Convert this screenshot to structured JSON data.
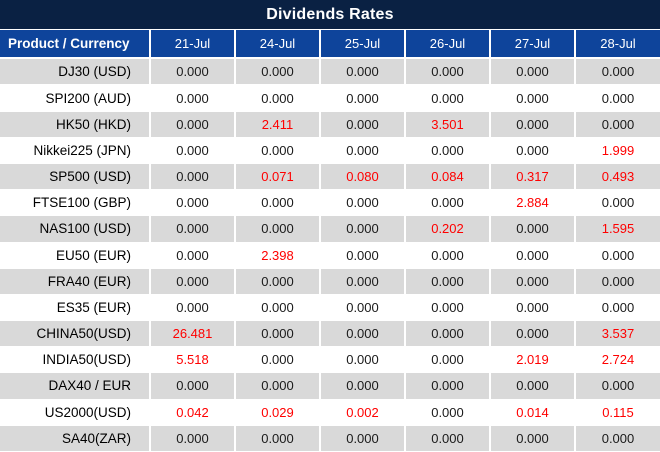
{
  "title": "Dividends Rates",
  "table": {
    "product_header": "Product / Currency",
    "date_columns": [
      "21-Jul",
      "24-Jul",
      "25-Jul",
      "26-Jul",
      "27-Jul",
      "28-Jul"
    ],
    "rows": [
      {
        "label": "DJ30 (USD)",
        "values": [
          "0.000",
          "0.000",
          "0.000",
          "0.000",
          "0.000",
          "0.000"
        ],
        "red": [
          false,
          false,
          false,
          false,
          false,
          false
        ]
      },
      {
        "label": "SPI200 (AUD)",
        "values": [
          "0.000",
          "0.000",
          "0.000",
          "0.000",
          "0.000",
          "0.000"
        ],
        "red": [
          false,
          false,
          false,
          false,
          false,
          false
        ]
      },
      {
        "label": "HK50 (HKD)",
        "values": [
          "0.000",
          "2.411",
          "0.000",
          "3.501",
          "0.000",
          "0.000"
        ],
        "red": [
          false,
          true,
          false,
          true,
          false,
          false
        ]
      },
      {
        "label": "Nikkei225 (JPN)",
        "values": [
          "0.000",
          "0.000",
          "0.000",
          "0.000",
          "0.000",
          "1.999"
        ],
        "red": [
          false,
          false,
          false,
          false,
          false,
          true
        ]
      },
      {
        "label": "SP500 (USD)",
        "values": [
          "0.000",
          "0.071",
          "0.080",
          "0.084",
          "0.317",
          "0.493"
        ],
        "red": [
          false,
          true,
          true,
          true,
          true,
          true
        ]
      },
      {
        "label": "FTSE100 (GBP)",
        "values": [
          "0.000",
          "0.000",
          "0.000",
          "0.000",
          "2.884",
          "0.000"
        ],
        "red": [
          false,
          false,
          false,
          false,
          true,
          false
        ]
      },
      {
        "label": "NAS100 (USD)",
        "values": [
          "0.000",
          "0.000",
          "0.000",
          "0.202",
          "0.000",
          "1.595"
        ],
        "red": [
          false,
          false,
          false,
          true,
          false,
          true
        ]
      },
      {
        "label": "EU50 (EUR)",
        "values": [
          "0.000",
          "2.398",
          "0.000",
          "0.000",
          "0.000",
          "0.000"
        ],
        "red": [
          false,
          true,
          false,
          false,
          false,
          false
        ]
      },
      {
        "label": "FRA40 (EUR)",
        "values": [
          "0.000",
          "0.000",
          "0.000",
          "0.000",
          "0.000",
          "0.000"
        ],
        "red": [
          false,
          false,
          false,
          false,
          false,
          false
        ]
      },
      {
        "label": "ES35 (EUR)",
        "values": [
          "0.000",
          "0.000",
          "0.000",
          "0.000",
          "0.000",
          "0.000"
        ],
        "red": [
          false,
          false,
          false,
          false,
          false,
          false
        ]
      },
      {
        "label": "CHINA50(USD)",
        "values": [
          "26.481",
          "0.000",
          "0.000",
          "0.000",
          "0.000",
          "3.537"
        ],
        "red": [
          true,
          false,
          false,
          false,
          false,
          true
        ]
      },
      {
        "label": "INDIA50(USD)",
        "values": [
          "5.518",
          "0.000",
          "0.000",
          "0.000",
          "2.019",
          "2.724"
        ],
        "red": [
          true,
          false,
          false,
          false,
          true,
          true
        ]
      },
      {
        "label": "DAX40 / EUR",
        "values": [
          "0.000",
          "0.000",
          "0.000",
          "0.000",
          "0.000",
          "0.000"
        ],
        "red": [
          false,
          false,
          false,
          false,
          false,
          false
        ]
      },
      {
        "label": "US2000(USD)",
        "values": [
          "0.042",
          "0.029",
          "0.002",
          "0.000",
          "0.014",
          "0.115"
        ],
        "red": [
          true,
          true,
          true,
          false,
          true,
          true
        ]
      },
      {
        "label": "SA40(ZAR)",
        "values": [
          "0.000",
          "0.000",
          "0.000",
          "0.000",
          "0.000",
          "0.000"
        ],
        "red": [
          false,
          false,
          false,
          false,
          false,
          false
        ]
      }
    ]
  },
  "colors": {
    "title_bar_bg": "#0A2143",
    "header_bg": "#0E449B",
    "row_alt_bg": "#D9D9D9",
    "row_bg": "#FFFFFF",
    "header_text": "#FFFFFF",
    "value_text": "#1A1A1A",
    "highlight_red": "#FF0000"
  },
  "chart_data": {
    "type": "table",
    "title": "Dividends Rates",
    "columns": [
      "Product / Currency",
      "21-Jul",
      "24-Jul",
      "25-Jul",
      "26-Jul",
      "27-Jul",
      "28-Jul"
    ],
    "rows": [
      [
        "DJ30 (USD)",
        0.0,
        0.0,
        0.0,
        0.0,
        0.0,
        0.0
      ],
      [
        "SPI200 (AUD)",
        0.0,
        0.0,
        0.0,
        0.0,
        0.0,
        0.0
      ],
      [
        "HK50 (HKD)",
        0.0,
        2.411,
        0.0,
        3.501,
        0.0,
        0.0
      ],
      [
        "Nikkei225 (JPN)",
        0.0,
        0.0,
        0.0,
        0.0,
        0.0,
        1.999
      ],
      [
        "SP500 (USD)",
        0.0,
        0.071,
        0.08,
        0.084,
        0.317,
        0.493
      ],
      [
        "FTSE100 (GBP)",
        0.0,
        0.0,
        0.0,
        0.0,
        2.884,
        0.0
      ],
      [
        "NAS100 (USD)",
        0.0,
        0.0,
        0.0,
        0.202,
        0.0,
        1.595
      ],
      [
        "EU50 (EUR)",
        0.0,
        2.398,
        0.0,
        0.0,
        0.0,
        0.0
      ],
      [
        "FRA40 (EUR)",
        0.0,
        0.0,
        0.0,
        0.0,
        0.0,
        0.0
      ],
      [
        "ES35 (EUR)",
        0.0,
        0.0,
        0.0,
        0.0,
        0.0,
        0.0
      ],
      [
        "CHINA50(USD)",
        26.481,
        0.0,
        0.0,
        0.0,
        0.0,
        3.537
      ],
      [
        "INDIA50(USD)",
        5.518,
        0.0,
        0.0,
        0.0,
        2.019,
        2.724
      ],
      [
        "DAX40 / EUR",
        0.0,
        0.0,
        0.0,
        0.0,
        0.0,
        0.0
      ],
      [
        "US2000(USD)",
        0.042,
        0.029,
        0.002,
        0.0,
        0.014,
        0.115
      ],
      [
        "SA40(ZAR)",
        0.0,
        0.0,
        0.0,
        0.0,
        0.0,
        0.0
      ]
    ],
    "notes": "Non-zero dividend values are highlighted in red; rows alternate gray/white; header row blue with white text"
  }
}
